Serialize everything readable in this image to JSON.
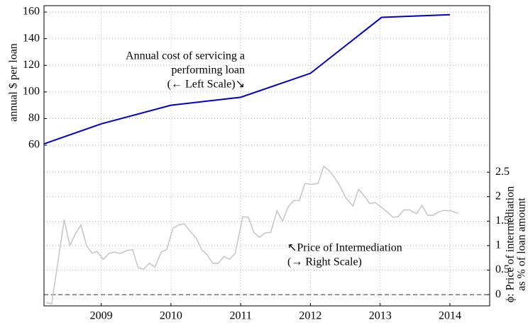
{
  "chart_data": {
    "type": "line",
    "ylabel": "annual $ per loan",
    "y2label": [
      "ϕ: Price of intermediation",
      "as % of loan amount"
    ],
    "annotations": [
      [
        "Annual cost of servicing a",
        "performing loan",
        "(← Left Scale)↘"
      ],
      [
        "↖Price of Intermediation",
        "(→ Right Scale)"
      ]
    ],
    "xlim": [
      2008.18,
      2014.57
    ],
    "xticks": [
      2009,
      2010,
      2011,
      2012,
      2013,
      2014
    ],
    "ylim": [
      -60.7,
      164.8
    ],
    "yticks": [
      60,
      80,
      100,
      120,
      140,
      160
    ],
    "y2lim": [
      -0.23,
      5.9
    ],
    "y2ticks": [
      0,
      0.5,
      1,
      1.5,
      2,
      2.5
    ],
    "y2_reference_line": 0,
    "grid": true,
    "series": [
      {
        "color": "#0000cc",
        "axis": "y",
        "x": [
          2008.18,
          2009,
          2010,
          2011,
          2012,
          2013.02,
          2014
        ],
        "values": [
          61,
          76,
          90,
          96,
          114,
          156,
          158
        ]
      },
      {
        "color": "#c8c8c8",
        "axis": "y2",
        "x": [
          2008.21,
          2008.29,
          2008.47,
          2008.55,
          2008.63,
          2008.71,
          2008.79,
          2008.87,
          2008.94,
          2009.03,
          2009.11,
          2009.19,
          2009.27,
          2009.37,
          2009.45,
          2009.53,
          2009.61,
          2009.69,
          2009.77,
          2009.86,
          2009.94,
          2010.03,
          2010.11,
          2010.19,
          2010.27,
          2010.36,
          2010.44,
          2010.52,
          2010.6,
          2010.68,
          2010.76,
          2010.84,
          2010.92,
          2011.03,
          2011.11,
          2011.19,
          2011.27,
          2011.35,
          2011.43,
          2011.52,
          2011.6,
          2011.68,
          2011.76,
          2011.84,
          2011.92,
          2012.02,
          2012.11,
          2012.19,
          2012.27,
          2012.35,
          2012.43,
          2012.51,
          2012.61,
          2012.69,
          2012.77,
          2012.85,
          2012.93,
          2013.01,
          2013.1,
          2013.18,
          2013.26,
          2013.34,
          2013.42,
          2013.52,
          2013.6,
          2013.68,
          2013.76,
          2013.84,
          2013.92,
          2014.01,
          2014.12
        ],
        "values": [
          -0.16,
          -0.19,
          1.53,
          1.0,
          1.24,
          1.42,
          1.0,
          0.85,
          0.88,
          0.72,
          0.84,
          0.87,
          0.84,
          0.9,
          0.92,
          0.55,
          0.52,
          0.64,
          0.56,
          0.87,
          0.92,
          1.36,
          1.42,
          1.45,
          1.3,
          1.16,
          0.92,
          0.81,
          0.64,
          0.64,
          0.78,
          0.72,
          0.84,
          1.59,
          1.58,
          1.27,
          1.17,
          1.26,
          1.27,
          1.71,
          1.5,
          1.79,
          1.92,
          1.92,
          2.27,
          2.25,
          2.27,
          2.62,
          2.53,
          2.38,
          2.2,
          1.97,
          1.81,
          2.15,
          2.02,
          1.86,
          1.88,
          1.79,
          1.69,
          1.58,
          1.59,
          1.73,
          1.73,
          1.65,
          1.82,
          1.62,
          1.62,
          1.69,
          1.72,
          1.71,
          1.66
        ]
      }
    ]
  }
}
